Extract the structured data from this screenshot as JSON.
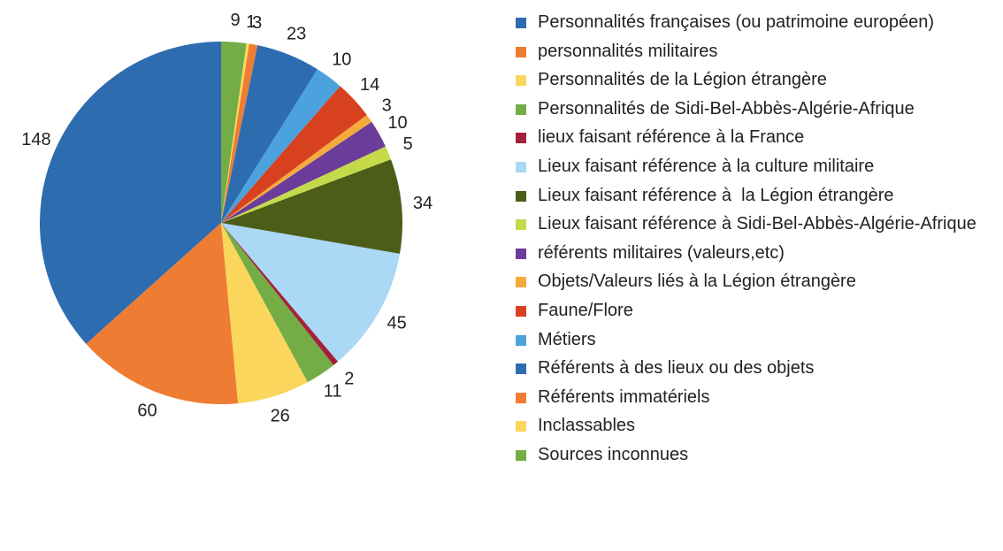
{
  "chart_data": {
    "type": "pie",
    "categories": [
      "Personnalités françaises (ou patrimoine européen)",
      "personnalités militaires",
      "Personnalités de la Légion étrangère",
      "Personnalités de Sidi-Bel-Abbès-Algérie-Afrique",
      "lieux faisant référence à la France",
      "Lieux faisant référence à la culture militaire",
      "Lieux faisant référence à  la Légion étrangère",
      "Lieux faisant référence à Sidi-Bel-Abbès-Algérie-Afrique",
      "référents militaires (valeurs,etc)",
      "Objets/Valeurs liés à la Légion étrangère",
      "Faune/Flore",
      "Métiers",
      "Référents à des lieux ou des objets",
      "Référents immatériels",
      "Inclassables",
      "Sources inconnues"
    ],
    "values": [
      148,
      60,
      26,
      11,
      2,
      45,
      34,
      5,
      10,
      3,
      14,
      10,
      23,
      3,
      1,
      9
    ],
    "colors": [
      "#2e6cb0",
      "#ee7d33",
      "#fbd65c",
      "#74ad45",
      "#a3223a",
      "#abd8f5",
      "#4c5d17",
      "#c4da4a",
      "#6b3c9a",
      "#f4aa3c",
      "#d8411f",
      "#4ba2dd",
      "#2e6cb0",
      "#ee7d33",
      "#fbd65c",
      "#74ad45"
    ],
    "legend": "right"
  }
}
